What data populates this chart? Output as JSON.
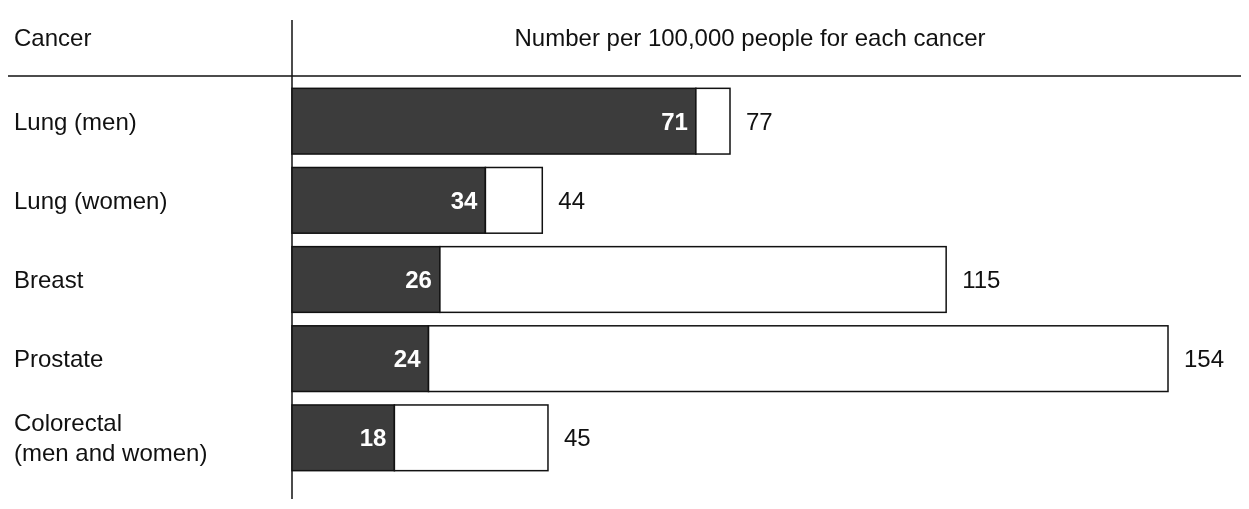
{
  "chart_data": {
    "type": "bar",
    "orientation": "horizontal",
    "stacked": true,
    "ylabel": "Cancer",
    "xlabel": "Number per 100,000 people for each cancer",
    "categories": [
      "Lung (men)",
      "Lung (women)",
      "Breast",
      "Prostate",
      "Colorectal\n(men and women)"
    ],
    "series": [
      {
        "color": "#3c3c3c",
        "values": [
          71,
          34,
          26,
          24,
          18
        ],
        "value_labels": [
          "71",
          "34",
          "26",
          "24",
          "18"
        ]
      },
      {
        "color": "#ffffff",
        "values": [
          6,
          10,
          89,
          130,
          27
        ]
      }
    ],
    "totals": [
      "77",
      "44",
      "115",
      "154",
      "45"
    ]
  }
}
